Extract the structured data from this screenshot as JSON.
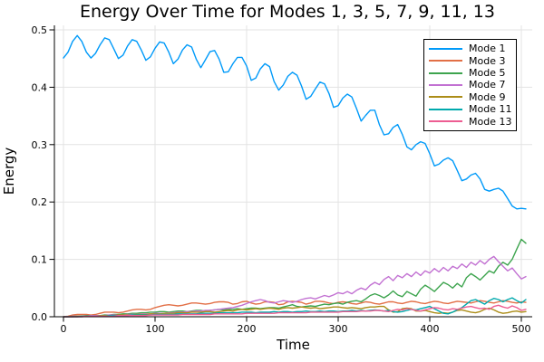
{
  "figure": {
    "title": "Energy Over Time for Modes 1, 3, 5, 7, 9, 11, 13",
    "xlabel": "Time",
    "ylabel": "Energy"
  },
  "chart_data": {
    "type": "line",
    "title": "Energy Over Time for Modes 1, 3, 5, 7, 9, 11, 13",
    "xlabel": "Time",
    "ylabel": "Energy",
    "xlim": [
      -10,
      512
    ],
    "ylim": [
      0,
      0.508
    ],
    "grid": true,
    "legend_position": "top-right",
    "x_ticks": [
      0,
      100,
      200,
      300,
      400,
      500
    ],
    "x_tick_labels": [
      "0",
      "100",
      "200",
      "300",
      "400",
      "500"
    ],
    "y_ticks": [
      0.0,
      0.1,
      0.2,
      0.3,
      0.4,
      0.5
    ],
    "y_tick_labels": [
      "0.0",
      "0.1",
      "0.2",
      "0.3",
      "0.4",
      "0.5"
    ],
    "x_start": 0,
    "x_step": 5,
    "x_end": 505,
    "grid_color": "#e3e3e3",
    "axis_color": "#000000",
    "series": [
      {
        "name": "Mode 1",
        "color": "#009af9",
        "values": [
          0.451,
          0.461,
          0.48,
          0.49,
          0.48,
          0.461,
          0.451,
          0.459,
          0.474,
          0.486,
          0.483,
          0.467,
          0.45,
          0.456,
          0.472,
          0.483,
          0.48,
          0.465,
          0.447,
          0.453,
          0.468,
          0.479,
          0.477,
          0.461,
          0.441,
          0.449,
          0.465,
          0.474,
          0.47,
          0.449,
          0.434,
          0.448,
          0.462,
          0.464,
          0.449,
          0.426,
          0.427,
          0.441,
          0.452,
          0.452,
          0.437,
          0.412,
          0.416,
          0.432,
          0.441,
          0.436,
          0.41,
          0.395,
          0.404,
          0.419,
          0.426,
          0.421,
          0.402,
          0.379,
          0.384,
          0.397,
          0.409,
          0.406,
          0.389,
          0.365,
          0.368,
          0.381,
          0.388,
          0.383,
          0.363,
          0.341,
          0.351,
          0.36,
          0.36,
          0.335,
          0.317,
          0.319,
          0.33,
          0.335,
          0.318,
          0.296,
          0.291,
          0.3,
          0.305,
          0.302,
          0.284,
          0.263,
          0.266,
          0.273,
          0.277,
          0.272,
          0.255,
          0.237,
          0.24,
          0.247,
          0.25,
          0.24,
          0.222,
          0.219,
          0.222,
          0.224,
          0.219,
          0.206,
          0.193,
          0.188,
          0.189,
          0.188
        ]
      },
      {
        "name": "Mode 3",
        "color": "#e26f46",
        "values": [
          0.0,
          0.001,
          0.003,
          0.004,
          0.004,
          0.004,
          0.003,
          0.004,
          0.006,
          0.008,
          0.008,
          0.008,
          0.007,
          0.008,
          0.01,
          0.012,
          0.013,
          0.013,
          0.012,
          0.013,
          0.016,
          0.018,
          0.02,
          0.021,
          0.02,
          0.019,
          0.02,
          0.022,
          0.024,
          0.024,
          0.023,
          0.022,
          0.023,
          0.025,
          0.026,
          0.026,
          0.025,
          0.022,
          0.023,
          0.026,
          0.027,
          0.024,
          0.022,
          0.023,
          0.026,
          0.026,
          0.025,
          0.021,
          0.022,
          0.026,
          0.027,
          0.026,
          0.025,
          0.022,
          0.024,
          0.027,
          0.027,
          0.026,
          0.024,
          0.023,
          0.025,
          0.026,
          0.025,
          0.023,
          0.022,
          0.024,
          0.026,
          0.025,
          0.023,
          0.022,
          0.024,
          0.026,
          0.026,
          0.024,
          0.023,
          0.025,
          0.027,
          0.026,
          0.024,
          0.023,
          0.025,
          0.027,
          0.026,
          0.024,
          0.023,
          0.025,
          0.027,
          0.026,
          0.025,
          0.024,
          0.026,
          0.028,
          0.027,
          0.025,
          0.024,
          0.026,
          0.028,
          0.027,
          0.025,
          0.024,
          0.026,
          0.025
        ]
      },
      {
        "name": "Mode 5",
        "color": "#3da44e",
        "values": [
          0.0,
          0.0,
          0.001,
          0.001,
          0.001,
          0.002,
          0.002,
          0.002,
          0.002,
          0.003,
          0.003,
          0.004,
          0.004,
          0.005,
          0.005,
          0.006,
          0.006,
          0.007,
          0.007,
          0.008,
          0.008,
          0.009,
          0.009,
          0.008,
          0.009,
          0.01,
          0.01,
          0.009,
          0.01,
          0.011,
          0.011,
          0.01,
          0.011,
          0.012,
          0.013,
          0.012,
          0.013,
          0.013,
          0.014,
          0.013,
          0.014,
          0.015,
          0.015,
          0.014,
          0.015,
          0.016,
          0.016,
          0.015,
          0.017,
          0.019,
          0.021,
          0.018,
          0.017,
          0.018,
          0.019,
          0.018,
          0.02,
          0.022,
          0.021,
          0.023,
          0.024,
          0.022,
          0.025,
          0.027,
          0.028,
          0.026,
          0.031,
          0.037,
          0.04,
          0.037,
          0.033,
          0.038,
          0.045,
          0.038,
          0.035,
          0.044,
          0.04,
          0.036,
          0.048,
          0.055,
          0.05,
          0.044,
          0.052,
          0.06,
          0.056,
          0.05,
          0.058,
          0.052,
          0.068,
          0.075,
          0.07,
          0.064,
          0.072,
          0.08,
          0.076,
          0.088,
          0.095,
          0.09,
          0.1,
          0.118,
          0.135,
          0.128
        ]
      },
      {
        "name": "Mode 7",
        "color": "#c271d2",
        "values": [
          0.0,
          0.0,
          0.001,
          0.001,
          0.001,
          0.001,
          0.002,
          0.002,
          0.002,
          0.002,
          0.003,
          0.003,
          0.003,
          0.003,
          0.004,
          0.004,
          0.004,
          0.005,
          0.005,
          0.005,
          0.006,
          0.006,
          0.006,
          0.007,
          0.007,
          0.008,
          0.008,
          0.009,
          0.009,
          0.01,
          0.01,
          0.011,
          0.011,
          0.012,
          0.013,
          0.014,
          0.015,
          0.016,
          0.018,
          0.02,
          0.023,
          0.026,
          0.028,
          0.03,
          0.028,
          0.025,
          0.024,
          0.026,
          0.028,
          0.027,
          0.025,
          0.027,
          0.03,
          0.032,
          0.033,
          0.031,
          0.034,
          0.037,
          0.035,
          0.038,
          0.042,
          0.04,
          0.044,
          0.04,
          0.046,
          0.05,
          0.047,
          0.055,
          0.06,
          0.056,
          0.065,
          0.07,
          0.063,
          0.072,
          0.068,
          0.075,
          0.07,
          0.078,
          0.072,
          0.08,
          0.076,
          0.084,
          0.078,
          0.086,
          0.08,
          0.088,
          0.084,
          0.092,
          0.086,
          0.095,
          0.09,
          0.098,
          0.092,
          0.1,
          0.105,
          0.096,
          0.088,
          0.08,
          0.085,
          0.075,
          0.066,
          0.07
        ]
      },
      {
        "name": "Mode 9",
        "color": "#ac8d18",
        "values": [
          0.0,
          0.0,
          0.0,
          0.001,
          0.001,
          0.001,
          0.001,
          0.001,
          0.002,
          0.002,
          0.002,
          0.002,
          0.003,
          0.003,
          0.003,
          0.003,
          0.004,
          0.004,
          0.004,
          0.005,
          0.005,
          0.005,
          0.006,
          0.006,
          0.006,
          0.007,
          0.007,
          0.007,
          0.008,
          0.008,
          0.008,
          0.009,
          0.009,
          0.008,
          0.009,
          0.01,
          0.011,
          0.01,
          0.012,
          0.013,
          0.012,
          0.013,
          0.014,
          0.013,
          0.014,
          0.015,
          0.014,
          0.013,
          0.015,
          0.016,
          0.015,
          0.016,
          0.017,
          0.016,
          0.015,
          0.016,
          0.014,
          0.015,
          0.016,
          0.017,
          0.017,
          0.016,
          0.015,
          0.016,
          0.015,
          0.014,
          0.016,
          0.017,
          0.017,
          0.018,
          0.018,
          0.012,
          0.008,
          0.009,
          0.014,
          0.015,
          0.014,
          0.01,
          0.01,
          0.011,
          0.009,
          0.007,
          0.006,
          0.007,
          0.006,
          0.008,
          0.011,
          0.012,
          0.01,
          0.008,
          0.007,
          0.009,
          0.013,
          0.015,
          0.012,
          0.008,
          0.006,
          0.007,
          0.009,
          0.01,
          0.008,
          0.009
        ]
      },
      {
        "name": "Mode 11",
        "color": "#00a9ad",
        "values": [
          0.0,
          0.0,
          0.0,
          0.0,
          0.001,
          0.001,
          0.001,
          0.001,
          0.001,
          0.001,
          0.002,
          0.002,
          0.002,
          0.002,
          0.002,
          0.003,
          0.003,
          0.003,
          0.003,
          0.003,
          0.004,
          0.004,
          0.004,
          0.004,
          0.004,
          0.005,
          0.005,
          0.005,
          0.005,
          0.005,
          0.006,
          0.006,
          0.006,
          0.006,
          0.007,
          0.007,
          0.007,
          0.007,
          0.007,
          0.008,
          0.008,
          0.008,
          0.007,
          0.008,
          0.008,
          0.008,
          0.009,
          0.008,
          0.009,
          0.009,
          0.008,
          0.009,
          0.009,
          0.01,
          0.009,
          0.009,
          0.01,
          0.009,
          0.01,
          0.01,
          0.009,
          0.01,
          0.01,
          0.011,
          0.01,
          0.011,
          0.01,
          0.011,
          0.012,
          0.011,
          0.01,
          0.011,
          0.009,
          0.008,
          0.009,
          0.011,
          0.013,
          0.012,
          0.014,
          0.016,
          0.018,
          0.014,
          0.01,
          0.006,
          0.005,
          0.008,
          0.012,
          0.016,
          0.022,
          0.028,
          0.03,
          0.026,
          0.022,
          0.028,
          0.032,
          0.03,
          0.026,
          0.03,
          0.033,
          0.028,
          0.024,
          0.03
        ]
      },
      {
        "name": "Mode 13",
        "color": "#ed5d92",
        "values": [
          0.0,
          0.0,
          0.0,
          0.0,
          0.0,
          0.001,
          0.001,
          0.001,
          0.001,
          0.001,
          0.001,
          0.001,
          0.002,
          0.002,
          0.002,
          0.002,
          0.002,
          0.002,
          0.002,
          0.003,
          0.003,
          0.003,
          0.003,
          0.003,
          0.003,
          0.003,
          0.004,
          0.004,
          0.004,
          0.004,
          0.004,
          0.004,
          0.004,
          0.005,
          0.005,
          0.005,
          0.005,
          0.005,
          0.005,
          0.005,
          0.006,
          0.006,
          0.006,
          0.006,
          0.006,
          0.006,
          0.006,
          0.007,
          0.007,
          0.007,
          0.007,
          0.007,
          0.007,
          0.007,
          0.008,
          0.008,
          0.008,
          0.008,
          0.008,
          0.008,
          0.008,
          0.009,
          0.009,
          0.009,
          0.009,
          0.01,
          0.01,
          0.01,
          0.011,
          0.011,
          0.01,
          0.009,
          0.011,
          0.013,
          0.012,
          0.014,
          0.013,
          0.011,
          0.01,
          0.012,
          0.014,
          0.016,
          0.015,
          0.013,
          0.012,
          0.014,
          0.013,
          0.015,
          0.017,
          0.018,
          0.016,
          0.014,
          0.015,
          0.013,
          0.018,
          0.02,
          0.017,
          0.015,
          0.019,
          0.016,
          0.011,
          0.013
        ]
      }
    ]
  }
}
